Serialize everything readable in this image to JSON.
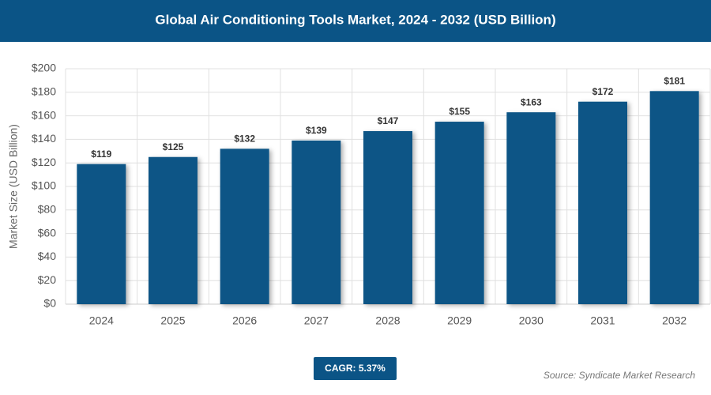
{
  "chart_data": {
    "type": "bar",
    "title": "Global Air Conditioning Tools Market, 2024 - 2032 (USD Billion)",
    "y_label": "Market Size (USD Billion)",
    "categories": [
      "2024",
      "2025",
      "2026",
      "2027",
      "2028",
      "2029",
      "2030",
      "2031",
      "2032"
    ],
    "values": [
      119,
      125,
      132,
      139,
      147,
      155,
      163,
      172,
      181
    ],
    "value_labels": [
      "$119",
      "$125",
      "$132",
      "$139",
      "$147",
      "$155",
      "$163",
      "$172",
      "$181"
    ],
    "color": "#0b5486",
    "ylim": [
      0,
      200
    ],
    "yticks": [
      {
        "value": 0,
        "label": "$0"
      },
      {
        "value": 20,
        "label": "$20"
      },
      {
        "value": 40,
        "label": "$40"
      },
      {
        "value": 60,
        "label": "$60"
      },
      {
        "value": 80,
        "label": "$80"
      },
      {
        "value": 100,
        "label": "$100"
      },
      {
        "value": 120,
        "label": "$120"
      },
      {
        "value": 140,
        "label": "$140"
      },
      {
        "value": 160,
        "label": "$160"
      },
      {
        "value": 180,
        "label": "$180"
      },
      {
        "value": 200,
        "label": "$200"
      }
    ],
    "grid": true,
    "cagr": "CAGR: 5.37%",
    "source": "Source: Syndicate Market Research"
  }
}
